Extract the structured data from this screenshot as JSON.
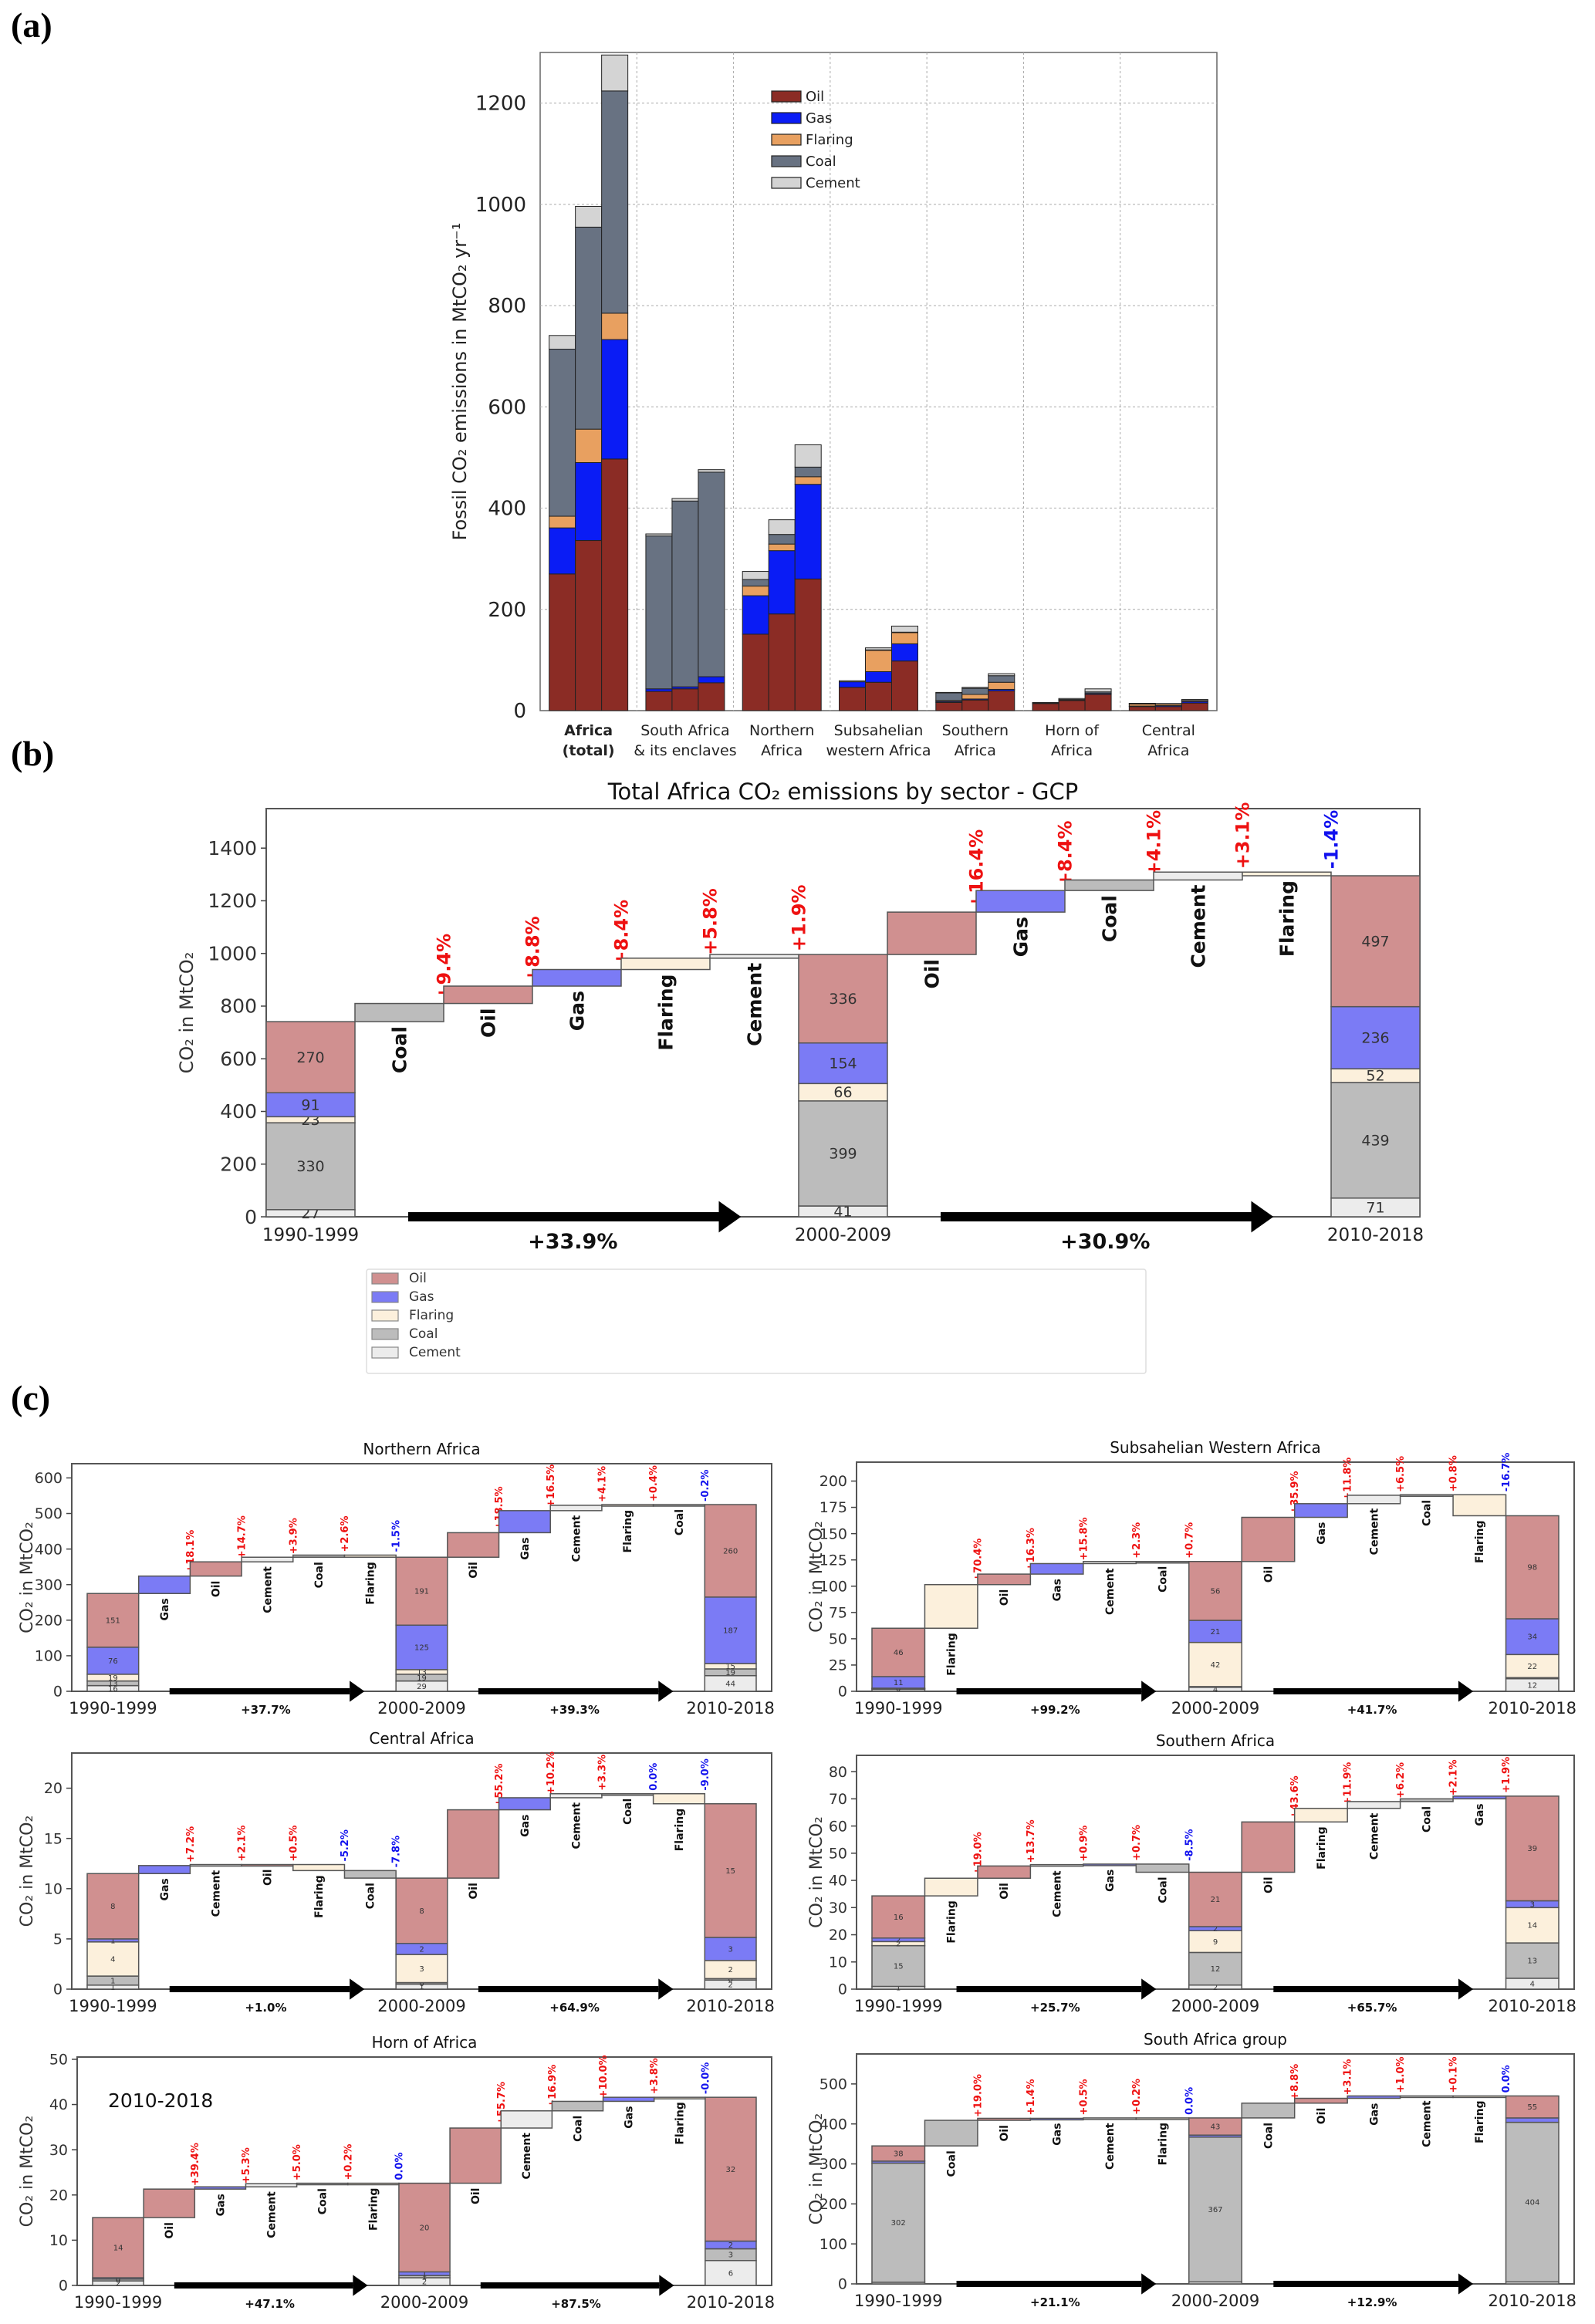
{
  "panel_letters": [
    "(a)",
    "(b)",
    "(c)"
  ],
  "sector_colors_a": {
    "Oil": "#8b2c25",
    "Gas": "#0a1cf5",
    "Flaring": "#e8a060",
    "Coal": "#687282",
    "Cement": "#d4d4d4"
  },
  "sector_colors_bc": {
    "Oil": "#d09090",
    "Gas": "#7b7bf5",
    "Flaring": "#fcf0dc",
    "Coal": "#bcbcbc",
    "Cement": "#ececec"
  },
  "pos_color": "#ee1111",
  "neg_color": "#1111ee",
  "chart_data": [
    {
      "id": "a",
      "type": "bar",
      "stacked": true,
      "title": "",
      "xlabel": "",
      "ylabel": "Fossil CO2 emissions in MtCO2 yr-1",
      "ylim": [
        0,
        1300
      ],
      "yticks": [
        0,
        200,
        400,
        600,
        800,
        1000,
        1200
      ],
      "grid": true,
      "legend": {
        "placement": "top-right",
        "entries": [
          "Oil",
          "Gas",
          "Flaring",
          "Coal",
          "Cement"
        ]
      },
      "periods": [
        "1990-1999",
        "2000-2009",
        "2010-2018"
      ],
      "categories": [
        "Africa\n(total)",
        "South Africa\n& its enclaves",
        "Northern\nAfrica",
        "Subsahelian\nwestern Africa",
        "Southern\nAfrica",
        "Horn of\nAfrica",
        "Central\nAfrica"
      ],
      "bold_categories": [
        0
      ],
      "series": [
        {
          "name": "Oil",
          "values": [
            [
              270,
              336,
              497
            ],
            [
              38,
              43,
              55
            ],
            [
              151,
              191,
              260
            ],
            [
              46,
              56,
              98
            ],
            [
              16,
              21,
              39
            ],
            [
              14,
              20,
              32
            ],
            [
              8,
              8,
              15
            ]
          ]
        },
        {
          "name": "Gas",
          "values": [
            [
              91,
              154,
              236
            ],
            [
              5,
              4,
              12
            ],
            [
              76,
              125,
              187
            ],
            [
              11,
              21,
              34
            ],
            [
              2,
              2,
              3
            ],
            [
              0.5,
              1,
              2
            ],
            [
              1,
              2,
              3
            ]
          ]
        },
        {
          "name": "Flaring",
          "values": [
            [
              23,
              66,
              52
            ],
            [
              0,
              0,
              0
            ],
            [
              19,
              13,
              15
            ],
            [
              0,
              42,
              22
            ],
            [
              2,
              9,
              14
            ],
            [
              0,
              0,
              0
            ],
            [
              4,
              3,
              2
            ]
          ]
        },
        {
          "name": "Coal",
          "values": [
            [
              330,
              399,
              439
            ],
            [
              302,
              367,
              404
            ],
            [
              13,
              19,
              19
            ],
            [
              0,
              1,
              1
            ],
            [
              15,
              12,
              13
            ],
            [
              0.5,
              1,
              3
            ],
            [
              1,
              0,
              0
            ]
          ]
        },
        {
          "name": "Cement",
          "values": [
            [
              27,
              41,
              71
            ],
            [
              4,
              5,
              5
            ],
            [
              16,
              29,
              44
            ],
            [
              2,
              4,
              12
            ],
            [
              1,
              2,
              4
            ],
            [
              1,
              2,
              6
            ],
            [
              0.5,
              1,
              2
            ]
          ]
        }
      ]
    },
    {
      "id": "b",
      "type": "waterfall",
      "title": "Total Africa CO₂ emissions by sector -  GCP",
      "ylabel": "CO₂ in MtCO₂",
      "ylim": [
        0,
        1550
      ],
      "yticks": [
        0,
        200,
        400,
        600,
        800,
        1000,
        1200,
        1400
      ],
      "periods": [
        "1990-1999",
        "2000-2009",
        "2010-2018"
      ],
      "period_stacks": [
        {
          "Cement": 27,
          "Coal": 330,
          "Flaring": 23,
          "Gas": 91,
          "Oil": 270
        },
        {
          "Cement": 41,
          "Coal": 399,
          "Flaring": 66,
          "Gas": 154,
          "Oil": 336
        },
        {
          "Cement": 71,
          "Coal": 439,
          "Flaring": 52,
          "Gas": 236,
          "Oil": 497
        }
      ],
      "stack_labels": [
        [
          "27",
          "330",
          "23",
          "91",
          "270"
        ],
        [
          "41",
          "399",
          "66",
          "154",
          "336"
        ],
        [
          "71",
          "439",
          "52",
          "236",
          "497"
        ]
      ],
      "steps": [
        [
          {
            "sector": "Coal",
            "label": "+9.4%"
          },
          {
            "sector": "Oil",
            "label": "+8.8%"
          },
          {
            "sector": "Gas",
            "label": "+8.4%"
          },
          {
            "sector": "Flaring",
            "label": "+5.8%"
          },
          {
            "sector": "Cement",
            "label": "+1.9%"
          }
        ],
        [
          {
            "sector": "Oil",
            "label": "+16.4%"
          },
          {
            "sector": "Gas",
            "label": "+8.4%"
          },
          {
            "sector": "Coal",
            "label": "+4.1%"
          },
          {
            "sector": "Cement",
            "label": "+3.1%"
          },
          {
            "sector": "Flaring",
            "label": "-1.4%"
          }
        ]
      ],
      "period_changes": [
        "+33.9%",
        "+30.9%"
      ],
      "legend": {
        "placement": "bottom",
        "entries": [
          "Oil",
          "Gas",
          "Flaring",
          "Coal",
          "Cement"
        ]
      }
    },
    {
      "id": "c1",
      "type": "waterfall",
      "title": "Northern Africa",
      "ylabel": "CO₂ in MtCO₂",
      "ylim": [
        0,
        640
      ],
      "yticks": [
        0,
        100,
        200,
        300,
        400,
        500,
        600
      ],
      "periods": [
        "1990-1999",
        "2000-2009",
        "2010-2018"
      ],
      "period_stacks": [
        {
          "Cement": 16,
          "Coal": 13,
          "Flaring": 19,
          "Gas": 76,
          "Oil": 151
        },
        {
          "Cement": 29,
          "Coal": 19,
          "Flaring": 13,
          "Gas": 125,
          "Oil": 191
        },
        {
          "Cement": 44,
          "Coal": 19,
          "Flaring": 15,
          "Gas": 187,
          "Oil": 260
        }
      ],
      "stack_labels": [
        [
          "16",
          "13",
          "19",
          "76",
          "151"
        ],
        [
          "29",
          "19",
          "13",
          "125",
          "191"
        ],
        [
          "44",
          "19",
          "15",
          "187",
          "260"
        ]
      ],
      "steps": [
        [
          {
            "sector": "Gas",
            "label": "+18.1%"
          },
          {
            "sector": "Oil",
            "label": "+14.7%"
          },
          {
            "sector": "Cement",
            "label": "+3.9%"
          },
          {
            "sector": "Coal",
            "label": "+2.6%"
          },
          {
            "sector": "Flaring",
            "label": "-1.5%"
          }
        ],
        [
          {
            "sector": "Oil",
            "label": "+18.5%"
          },
          {
            "sector": "Gas",
            "label": "+16.5%"
          },
          {
            "sector": "Cement",
            "label": "+4.1%"
          },
          {
            "sector": "Flaring",
            "label": "+0.4%"
          },
          {
            "sector": "Coal",
            "label": "-0.2%"
          }
        ]
      ],
      "period_changes": [
        "+37.7%",
        "+39.3%"
      ]
    },
    {
      "id": "c2",
      "type": "waterfall",
      "title": "Subsahelian Western Africa",
      "ylabel": "CO₂ in MtCO₂",
      "ylim": [
        0,
        218
      ],
      "yticks": [
        0,
        25,
        50,
        75,
        100,
        125,
        150,
        175,
        200
      ],
      "periods": [
        "1990-1999",
        "2000-2009",
        "2010-2018"
      ],
      "period_stacks": [
        {
          "Cement": 2,
          "Coal": 0.5,
          "Flaring": 0.5,
          "Gas": 11,
          "Oil": 46
        },
        {
          "Cement": 4,
          "Coal": 0.5,
          "Flaring": 42,
          "Gas": 21,
          "Oil": 56
        },
        {
          "Cement": 12,
          "Coal": 1,
          "Flaring": 22,
          "Gas": 34,
          "Oil": 98
        }
      ],
      "stack_labels": [
        [
          "",
          "",
          "0",
          "11",
          "46"
        ],
        [
          "4",
          "",
          "42",
          "21",
          "56"
        ],
        [
          "12",
          "",
          "22",
          "34",
          "98"
        ]
      ],
      "steps": [
        [
          {
            "sector": "Flaring",
            "label": "+70.4%"
          },
          {
            "sector": "Oil",
            "label": "+16.3%"
          },
          {
            "sector": "Gas",
            "label": "+15.8%"
          },
          {
            "sector": "Cement",
            "label": "+2.3%"
          },
          {
            "sector": "Coal",
            "label": "+0.7%"
          }
        ],
        [
          {
            "sector": "Oil",
            "label": "+35.9%"
          },
          {
            "sector": "Gas",
            "label": "+11.8%"
          },
          {
            "sector": "Cement",
            "label": "+6.5%"
          },
          {
            "sector": "Coal",
            "label": "+0.8%"
          },
          {
            "sector": "Flaring",
            "label": "-16.7%"
          }
        ]
      ],
      "period_changes": [
        "+99.2%",
        "+41.7%"
      ]
    },
    {
      "id": "c3",
      "type": "waterfall",
      "title": "Central Africa",
      "ylabel": "CO₂ in MtCO₂",
      "ylim": [
        0,
        23.5
      ],
      "yticks": [
        0,
        5,
        10,
        15,
        20
      ],
      "periods": [
        "1990-1999",
        "2000-2009",
        "2010-2018"
      ],
      "period_stacks": [
        {
          "Cement": 0.4,
          "Coal": 0.9,
          "Flaring": 3.4,
          "Gas": 0.3,
          "Oil": 6.5
        },
        {
          "Cement": 0.5,
          "Coal": 0.15,
          "Flaring": 2.8,
          "Gas": 1.1,
          "Oil": 6.5
        },
        {
          "Cement": 0.9,
          "Coal": 0.15,
          "Flaring": 1.8,
          "Gas": 2.3,
          "Oil": 13.3
        }
      ],
      "stack_labels": [
        [
          "1",
          "1",
          "4",
          "1",
          "8"
        ],
        [
          "1",
          "0",
          "3",
          "2",
          "8"
        ],
        [
          "2",
          "0",
          "2",
          "3",
          "15"
        ]
      ],
      "steps": [
        [
          {
            "sector": "Gas",
            "label": "+7.2%"
          },
          {
            "sector": "Cement",
            "label": "+2.1%"
          },
          {
            "sector": "Oil",
            "label": "+0.5%"
          },
          {
            "sector": "Flaring",
            "label": "-5.2%"
          },
          {
            "sector": "Coal",
            "label": "-7.8%"
          }
        ],
        [
          {
            "sector": "Oil",
            "label": "+55.2%"
          },
          {
            "sector": "Gas",
            "label": "+10.2%"
          },
          {
            "sector": "Cement",
            "label": "+3.3%"
          },
          {
            "sector": "Coal",
            "label": "0.0%"
          },
          {
            "sector": "Flaring",
            "label": "-9.0%"
          }
        ]
      ],
      "period_changes": [
        "+1.0%",
        "+64.9%"
      ]
    },
    {
      "id": "c4",
      "type": "waterfall",
      "title": "Southern Africa",
      "ylabel": "CO₂ in MtCO₂",
      "ylim": [
        0,
        86
      ],
      "yticks": [
        0,
        10,
        20,
        30,
        40,
        50,
        60,
        70,
        80
      ],
      "periods": [
        "1990-1999",
        "2000-2009",
        "2010-2018"
      ],
      "period_stacks": [
        {
          "Cement": 1,
          "Coal": 15,
          "Flaring": 1.5,
          "Gas": 1.3,
          "Oil": 15.5
        },
        {
          "Cement": 1.5,
          "Coal": 12,
          "Flaring": 8,
          "Gas": 1.5,
          "Oil": 20
        },
        {
          "Cement": 4,
          "Coal": 13,
          "Flaring": 13,
          "Gas": 2.5,
          "Oil": 38.5
        }
      ],
      "stack_labels": [
        [
          "1",
          "15",
          "2",
          "2",
          "16"
        ],
        [
          "2",
          "12",
          "9",
          "2",
          "21"
        ],
        [
          "4",
          "13",
          "14",
          "3",
          "39"
        ]
      ],
      "steps": [
        [
          {
            "sector": "Flaring",
            "label": "+19.0%"
          },
          {
            "sector": "Oil",
            "label": "+13.7%"
          },
          {
            "sector": "Cement",
            "label": "+0.9%"
          },
          {
            "sector": "Gas",
            "label": "+0.7%"
          },
          {
            "sector": "Coal",
            "label": "-8.5%"
          }
        ],
        [
          {
            "sector": "Oil",
            "label": "+43.6%"
          },
          {
            "sector": "Flaring",
            "label": "+11.9%"
          },
          {
            "sector": "Cement",
            "label": "+6.2%"
          },
          {
            "sector": "Coal",
            "label": "+2.1%"
          },
          {
            "sector": "Gas",
            "label": "+1.9%"
          }
        ]
      ],
      "period_changes": [
        "+25.7%",
        "+65.7%"
      ]
    },
    {
      "id": "c5",
      "type": "waterfall",
      "title": "Horn of Africa",
      "ylabel": "CO₂ in MtCO₂",
      "annotation": "2010-2018",
      "ylim": [
        0,
        50.5
      ],
      "yticks": [
        0,
        10,
        20,
        30,
        40,
        50
      ],
      "periods": [
        "1990-1999",
        "2000-2009",
        "2010-2018"
      ],
      "period_stacks": [
        {
          "Cement": 1,
          "Coal": 0.4,
          "Flaring": 0,
          "Gas": 0.3,
          "Oil": 13.3
        },
        {
          "Cement": 1.7,
          "Coal": 0.5,
          "Flaring": 0,
          "Gas": 0.8,
          "Oil": 19.6
        },
        {
          "Cement": 5.5,
          "Coal": 2.6,
          "Flaring": 0,
          "Gas": 1.7,
          "Oil": 31.8
        }
      ],
      "stack_labels": [
        [
          "2",
          "0",
          "",
          "0",
          "14"
        ],
        [
          "2",
          "1",
          "",
          "1",
          "20"
        ],
        [
          "6",
          "3",
          "",
          "2",
          "32"
        ]
      ],
      "steps": [
        [
          {
            "sector": "Oil",
            "label": "+39.4%"
          },
          {
            "sector": "Gas",
            "label": "+5.3%"
          },
          {
            "sector": "Cement",
            "label": "+5.0%"
          },
          {
            "sector": "Coal",
            "label": "+0.2%"
          },
          {
            "sector": "Flaring",
            "label": "0.0%"
          }
        ],
        [
          {
            "sector": "Oil",
            "label": "+55.7%"
          },
          {
            "sector": "Cement",
            "label": "+16.9%"
          },
          {
            "sector": "Coal",
            "label": "+10.0%"
          },
          {
            "sector": "Gas",
            "label": "+3.8%"
          },
          {
            "sector": "Flaring",
            "label": "-0.0%"
          }
        ]
      ],
      "period_changes": [
        "+47.1%",
        "+87.5%"
      ]
    },
    {
      "id": "c6",
      "type": "waterfall",
      "title": "South Africa group",
      "ylabel": "CO₂ in MtCO₂",
      "ylim": [
        0,
        575
      ],
      "yticks": [
        0,
        100,
        200,
        300,
        400,
        500
      ],
      "periods": [
        "1990-1999",
        "2000-2009",
        "2010-2018"
      ],
      "period_stacks": [
        {
          "Cement": 4,
          "Coal": 298,
          "Flaring": 0,
          "Gas": 5,
          "Oil": 38
        },
        {
          "Cement": 5,
          "Coal": 362,
          "Flaring": 0,
          "Gas": 5,
          "Oil": 43
        },
        {
          "Cement": 5,
          "Coal": 399,
          "Flaring": 0,
          "Gas": 11,
          "Oil": 55
        }
      ],
      "stack_labels": [
        [
          "",
          "302",
          "",
          "",
          "38"
        ],
        [
          "",
          "367",
          "",
          "",
          "43"
        ],
        [
          "",
          "404",
          "",
          "",
          "55"
        ]
      ],
      "steps": [
        [
          {
            "sector": "Coal",
            "label": "+19.0%"
          },
          {
            "sector": "Oil",
            "label": "+1.4%"
          },
          {
            "sector": "Gas",
            "label": "+0.5%"
          },
          {
            "sector": "Cement",
            "label": "+0.2%"
          },
          {
            "sector": "Flaring",
            "label": "0.0%"
          }
        ],
        [
          {
            "sector": "Coal",
            "label": "+8.8%"
          },
          {
            "sector": "Oil",
            "label": "+3.1%"
          },
          {
            "sector": "Gas",
            "label": "+1.0%"
          },
          {
            "sector": "Cement",
            "label": "+0.1%"
          },
          {
            "sector": "Flaring",
            "label": "0.0%"
          }
        ]
      ],
      "period_changes": [
        "+21.1%",
        "+12.9%"
      ]
    }
  ]
}
